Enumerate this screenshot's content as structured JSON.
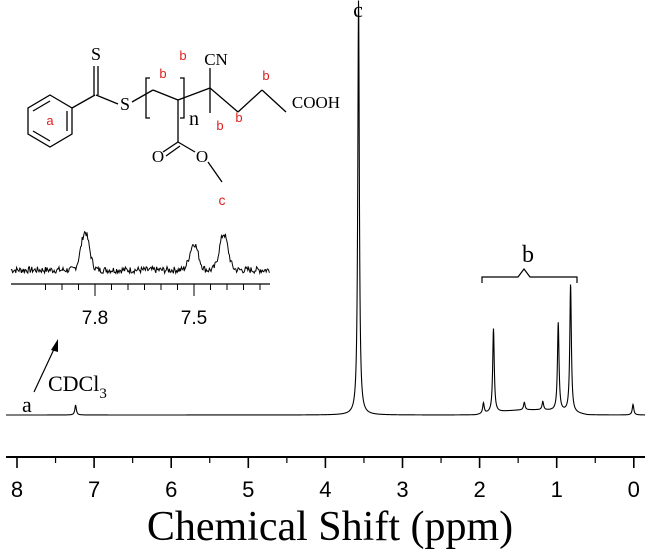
{
  "chart_data": {
    "type": "line",
    "xlabel": "Chemical Shift (ppm)",
    "xlim": [
      8.3,
      -0.2
    ],
    "x_reversed": true,
    "ylim": [
      0,
      1
    ],
    "grid": false,
    "x_ticks": [
      8,
      7,
      6,
      5,
      4,
      3,
      2,
      1,
      0
    ],
    "peaks": [
      {
        "shift": 7.24,
        "height": 0.023
      },
      {
        "shift": 3.57,
        "height": 0.99
      },
      {
        "shift": 1.95,
        "height": 0.025
      },
      {
        "shift": 1.82,
        "height": 0.2
      },
      {
        "shift": 1.42,
        "height": 0.018
      },
      {
        "shift": 1.18,
        "height": 0.02
      },
      {
        "shift": 0.98,
        "height": 0.21
      },
      {
        "shift": 0.82,
        "height": 0.306
      },
      {
        "shift": 0.01,
        "height": 0.025
      }
    ],
    "annotations": {
      "peak_c": "c",
      "group_b": "b",
      "solvent": "CDCl",
      "solvent_sub": "3",
      "label_a": "a"
    },
    "inset": {
      "ticks": [
        "7.8",
        "7.5"
      ],
      "peaks": [
        {
          "shift": 7.83,
          "height": 1.0
        },
        {
          "shift": 7.5,
          "height": 0.7
        },
        {
          "shift": 7.41,
          "height": 0.95
        }
      ]
    }
  },
  "structure": {
    "S_top": "S",
    "S_mid": "S",
    "label_a": "a",
    "b1": "b",
    "b2": "b",
    "b3": "b",
    "b4": "b",
    "b5": "b",
    "CN": "CN",
    "COOH": "COOH",
    "n": "n",
    "O1": "O",
    "O2": "O",
    "c": "c"
  },
  "colors": {
    "trace": "#000000",
    "label_red": "#e02020"
  }
}
